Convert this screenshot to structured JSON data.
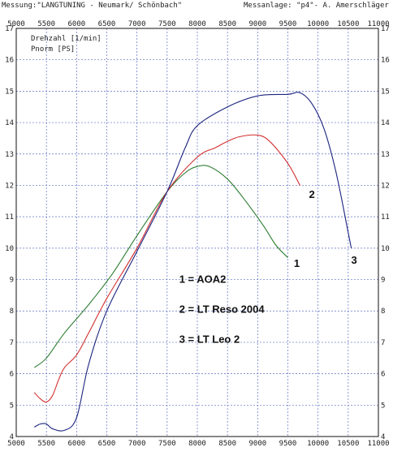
{
  "header": {
    "measurement": "Messung:\"LANGTUNING - Neumark/ Schönbach\"",
    "bench": "Messanlage: \"p4\"- A. Amerschläger"
  },
  "chart_data": {
    "type": "line",
    "xlim": [
      5000,
      11000
    ],
    "ylim": [
      4,
      17
    ],
    "x_ticks": [
      "5000",
      "5500",
      "6000",
      "6500",
      "7000",
      "7500",
      "8000",
      "8500",
      "9000",
      "9500",
      "10000",
      "10500",
      "11000"
    ],
    "y_ticks": [
      "4",
      "5",
      "6",
      "7",
      "8",
      "9",
      "10",
      "11",
      "12",
      "13",
      "14",
      "15",
      "16",
      "17"
    ],
    "axis_titles": [
      "Drehzahl [1/min]",
      "Pnorm [PS]"
    ],
    "grid": true,
    "series": [
      {
        "id": "1",
        "color": "#2e7d32",
        "x": [
          5300,
          5500,
          5800,
          6200,
          6600,
          7000,
          7500,
          7800,
          8000,
          8200,
          8500,
          8800,
          9100,
          9300,
          9500
        ],
        "y": [
          6.2,
          6.5,
          7.3,
          8.2,
          9.2,
          10.4,
          11.8,
          12.4,
          12.6,
          12.6,
          12.2,
          11.5,
          10.7,
          10.1,
          9.7
        ]
      },
      {
        "id": "2",
        "color": "#d32f2f",
        "x": [
          5300,
          5400,
          5500,
          5600,
          5700,
          5800,
          6000,
          6200,
          6500,
          7000,
          7500,
          8000,
          8300,
          8500,
          8700,
          9000,
          9200,
          9500,
          9700
        ],
        "y": [
          5.4,
          5.2,
          5.1,
          5.3,
          5.8,
          6.2,
          6.6,
          7.3,
          8.4,
          10.0,
          11.8,
          12.9,
          13.2,
          13.4,
          13.55,
          13.6,
          13.4,
          12.7,
          12.0
        ]
      },
      {
        "id": "3",
        "color": "#1a237e",
        "x": [
          5300,
          5400,
          5500,
          5600,
          5800,
          6000,
          6200,
          6500,
          7000,
          7500,
          7800,
          8000,
          8500,
          9000,
          9500,
          9700,
          9900,
          10100,
          10300,
          10500,
          10550
        ],
        "y": [
          4.3,
          4.4,
          4.4,
          4.25,
          4.2,
          4.6,
          6.3,
          8.0,
          9.9,
          11.8,
          13.2,
          13.9,
          14.5,
          14.85,
          14.9,
          14.95,
          14.6,
          13.8,
          12.4,
          10.5,
          10.0
        ]
      }
    ],
    "curve_labels": [
      {
        "text": "1",
        "x": 9600,
        "y": 9.4
      },
      {
        "text": "2",
        "x": 9850,
        "y": 11.6
      },
      {
        "text": "3",
        "x": 10550,
        "y": 9.5
      }
    ],
    "legend": [
      "1 = AOA2",
      "2 = LT Reso 2004",
      "3 = LT Leo 2"
    ]
  }
}
